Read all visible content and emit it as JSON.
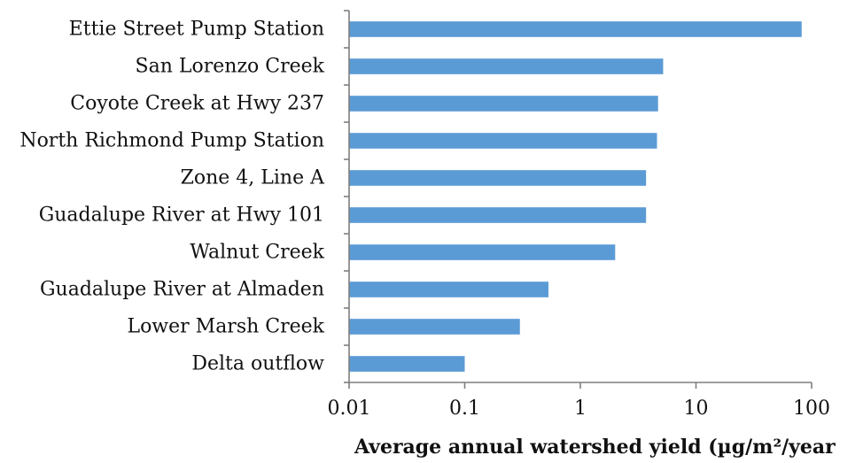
{
  "chart_data": {
    "type": "bar",
    "orientation": "horizontal",
    "title": "",
    "xlabel": "Average annual watershed yield (µg/m²/year",
    "ylabel": "",
    "x_scale": "log",
    "xlim": [
      0.01,
      100
    ],
    "x_ticks": [
      "0.01",
      "0.1",
      "1",
      "10",
      "100"
    ],
    "grid": false,
    "legend": "none",
    "bar_color": "#5b9bd5",
    "categories": [
      "Ettie Street Pump Station",
      "San Lorenzo Creek",
      "Coyote Creek at Hwy 237",
      "North Richmond Pump Station",
      "Zone 4, Line A",
      "Guadalupe River at Hwy 101",
      "Walnut Creek",
      "Guadalupe River at Almaden",
      "Lower Marsh Creek",
      "Delta outflow"
    ],
    "values": [
      82,
      5.2,
      4.7,
      4.6,
      3.7,
      3.7,
      2.0,
      0.53,
      0.3,
      0.1
    ]
  }
}
